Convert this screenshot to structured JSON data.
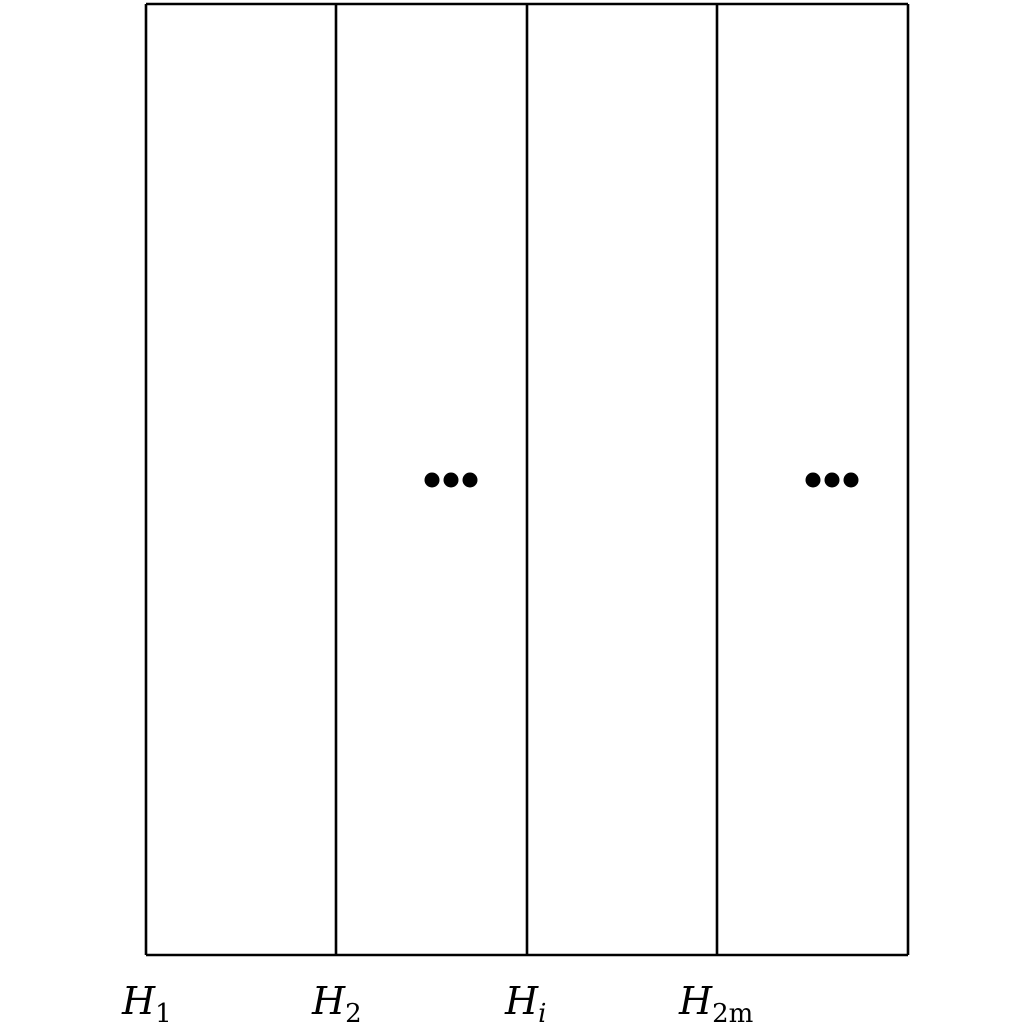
{
  "diagram": {
    "labels": [
      {
        "base": "H",
        "sub": "1"
      },
      {
        "base": "H",
        "sub": "2"
      },
      {
        "base": "H",
        "sub": "i"
      },
      {
        "base": "H",
        "sub": "2m"
      }
    ],
    "ellipsis_groups": 2,
    "colors": {
      "stroke": "#000000",
      "background": "#ffffff"
    }
  }
}
